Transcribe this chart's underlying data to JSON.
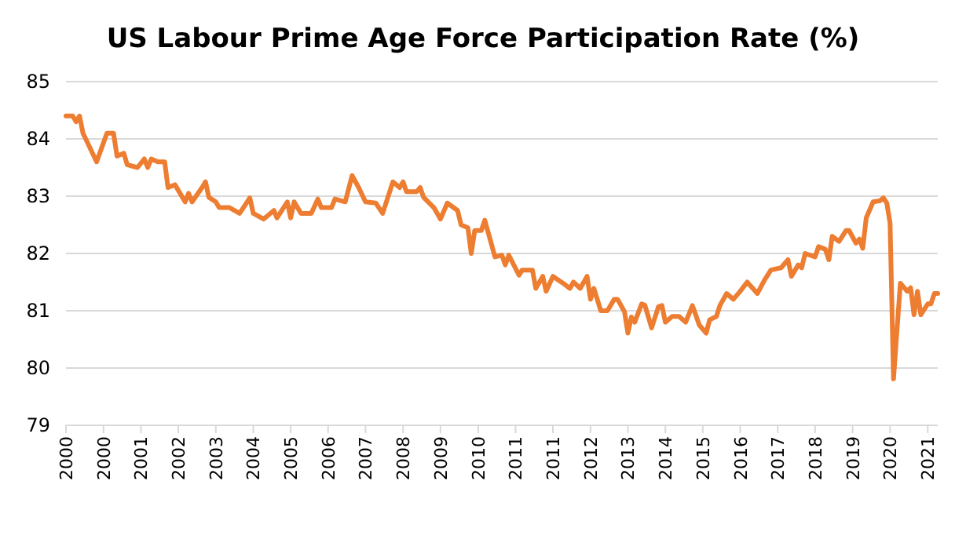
{
  "chart_data": {
    "type": "line",
    "title": "US Labour Prime Age Force Participation Rate (%)",
    "x": [
      "2000-01",
      "2000-03",
      "2000-04",
      "2000-05",
      "2000-06",
      "2000-08",
      "2000-10",
      "2001-01",
      "2001-03",
      "2001-04",
      "2001-06",
      "2001-07",
      "2001-10",
      "2001-12",
      "2002-01",
      "2002-02",
      "2002-04",
      "2002-06",
      "2002-07",
      "2002-09",
      "2002-12",
      "2003-01",
      "2003-02",
      "2003-05",
      "2003-06",
      "2003-07",
      "2003-09",
      "2003-10",
      "2004-01",
      "2004-04",
      "2004-07",
      "2004-08",
      "2004-11",
      "2005-02",
      "2005-03",
      "2005-06",
      "2005-07",
      "2005-08",
      "2005-10",
      "2006-01",
      "2006-03",
      "2006-04",
      "2006-07",
      "2006-08",
      "2006-11",
      "2007-01",
      "2007-03",
      "2007-05",
      "2007-08",
      "2007-10",
      "2008-01",
      "2008-03",
      "2008-04",
      "2008-05",
      "2008-08",
      "2008-09",
      "2008-10",
      "2009-01",
      "2009-03",
      "2009-05",
      "2009-08",
      "2009-09",
      "2009-11",
      "2009-12",
      "2010-01",
      "2010-03",
      "2010-04",
      "2010-07",
      "2010-09",
      "2010-10",
      "2010-11",
      "2011-02",
      "2011-03",
      "2011-06",
      "2011-07",
      "2011-09",
      "2011-10",
      "2011-12",
      "2012-03",
      "2012-05",
      "2012-06",
      "2012-08",
      "2012-10",
      "2012-11",
      "2012-12",
      "2013-02",
      "2013-04",
      "2013-06",
      "2013-07",
      "2013-09",
      "2013-10",
      "2013-11",
      "2013-12",
      "2014-02",
      "2014-03",
      "2014-05",
      "2014-07",
      "2014-08",
      "2014-09",
      "2014-11",
      "2015-01",
      "2015-03",
      "2015-05",
      "2015-07",
      "2015-09",
      "2015-10",
      "2015-12",
      "2016-01",
      "2016-03",
      "2016-05",
      "2016-07",
      "2016-09",
      "2016-12",
      "2017-02",
      "2017-04",
      "2017-07",
      "2017-09",
      "2017-10",
      "2017-12",
      "2018-01",
      "2018-02",
      "2018-05",
      "2018-06",
      "2018-08",
      "2018-09",
      "2018-10",
      "2018-12",
      "2019-02",
      "2019-03",
      "2019-05",
      "2019-06",
      "2019-07",
      "2019-08",
      "2019-10",
      "2019-12",
      "2020-01",
      "2020-02",
      "2020-03",
      "2020-04",
      "2020-06",
      "2020-08",
      "2020-09",
      "2020-10",
      "2020-11",
      "2020-12",
      "2021-02",
      "2021-03",
      "2021-04",
      "2021-05"
    ],
    "series": [
      {
        "color": "#ed7d31",
        "values": [
          84.4,
          84.4,
          84.3,
          84.4,
          84.1,
          83.85,
          83.6,
          84.1,
          84.1,
          83.7,
          83.75,
          83.55,
          83.5,
          83.65,
          83.5,
          83.65,
          83.6,
          83.6,
          83.15,
          83.2,
          82.9,
          83.05,
          82.9,
          83.15,
          83.25,
          82.98,
          82.9,
          82.8,
          82.8,
          82.7,
          82.97,
          82.7,
          82.6,
          82.75,
          82.62,
          82.9,
          82.62,
          82.9,
          82.7,
          82.7,
          82.95,
          82.8,
          82.8,
          82.95,
          82.9,
          83.36,
          83.15,
          82.9,
          82.88,
          82.7,
          83.25,
          83.15,
          83.25,
          83.08,
          83.08,
          83.15,
          82.98,
          82.8,
          82.6,
          82.88,
          82.75,
          82.5,
          82.45,
          82.0,
          82.4,
          82.4,
          82.58,
          81.94,
          81.97,
          81.8,
          81.97,
          81.62,
          81.71,
          81.71,
          81.39,
          81.6,
          81.34,
          81.6,
          81.48,
          81.39,
          81.5,
          81.39,
          81.6,
          81.2,
          81.39,
          81.0,
          81.0,
          81.2,
          81.2,
          80.98,
          80.61,
          80.89,
          80.8,
          81.12,
          81.1,
          80.7,
          81.07,
          81.09,
          80.8,
          80.9,
          80.9,
          80.8,
          81.09,
          80.75,
          80.61,
          80.84,
          80.9,
          81.09,
          81.3,
          81.2,
          81.34,
          81.5,
          81.3,
          81.53,
          81.71,
          81.75,
          81.89,
          81.6,
          81.8,
          81.75,
          82.0,
          81.94,
          82.12,
          82.07,
          81.89,
          82.3,
          82.21,
          82.4,
          82.4,
          82.18,
          82.25,
          82.09,
          82.62,
          82.9,
          82.92,
          82.97,
          82.88,
          82.53,
          79.81,
          81.48,
          81.34,
          81.4,
          80.93,
          81.34,
          80.93,
          81.12,
          81.12,
          81.3,
          81.3
        ]
      }
    ],
    "xlim": [
      "2000-01",
      "2021-05"
    ],
    "xticks": [
      {
        "value": "2000-01",
        "label": "2000"
      },
      {
        "value": "2000-12",
        "label": "2000"
      },
      {
        "value": "2001-11",
        "label": "2001"
      },
      {
        "value": "2002-10",
        "label": "2002"
      },
      {
        "value": "2003-09",
        "label": "2003"
      },
      {
        "value": "2004-08",
        "label": "2004"
      },
      {
        "value": "2005-07",
        "label": "2005"
      },
      {
        "value": "2006-06",
        "label": "2006"
      },
      {
        "value": "2007-05",
        "label": "2007"
      },
      {
        "value": "2008-04",
        "label": "2008"
      },
      {
        "value": "2009-03",
        "label": "2009"
      },
      {
        "value": "2010-02",
        "label": "2010"
      },
      {
        "value": "2011-01",
        "label": "2011"
      },
      {
        "value": "2011-12",
        "label": "2011"
      },
      {
        "value": "2012-11",
        "label": "2012"
      },
      {
        "value": "2013-10",
        "label": "2013"
      },
      {
        "value": "2014-09",
        "label": "2014"
      },
      {
        "value": "2015-08",
        "label": "2015"
      },
      {
        "value": "2016-07",
        "label": "2016"
      },
      {
        "value": "2017-06",
        "label": "2017"
      },
      {
        "value": "2018-05",
        "label": "2018"
      },
      {
        "value": "2019-04",
        "label": "2019"
      },
      {
        "value": "2020-03",
        "label": "2020"
      },
      {
        "value": "2021-02",
        "label": "2021"
      }
    ],
    "ylim": [
      79,
      85
    ],
    "yticks": [
      79,
      80,
      81,
      82,
      83,
      84,
      85
    ],
    "grid": "y"
  }
}
